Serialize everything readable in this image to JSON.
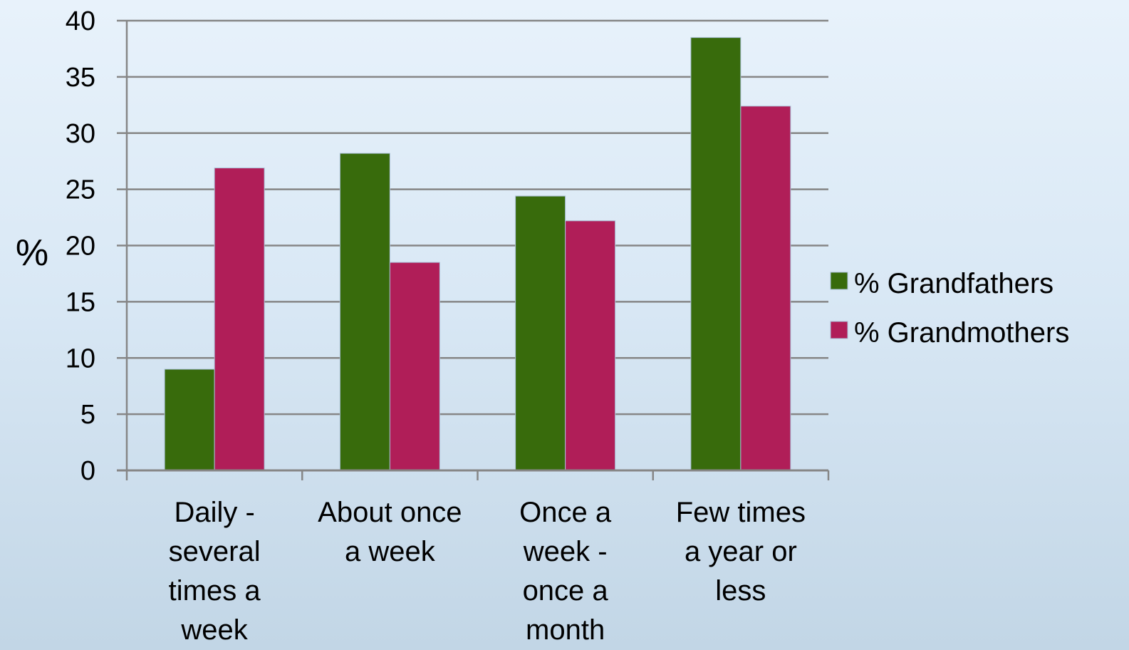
{
  "chart_data": {
    "type": "bar",
    "title": "",
    "xlabel": "",
    "ylabel": "%",
    "ylim": [
      0,
      40
    ],
    "yticks": [
      0,
      5,
      10,
      15,
      20,
      25,
      30,
      35,
      40
    ],
    "grid": true,
    "legend_position": "right",
    "categories": [
      [
        "Daily -",
        "several",
        "times a",
        "week"
      ],
      [
        "About once",
        "a week"
      ],
      [
        "Once a",
        "week -",
        "once a",
        "month"
      ],
      [
        "Few times",
        "a year or",
        "less"
      ]
    ],
    "series": [
      {
        "name": "% Grandfathers",
        "color": "#386b0c",
        "values": [
          9,
          28.2,
          24.4,
          38.5
        ]
      },
      {
        "name": "% Grandmothers",
        "color": "#b01e58",
        "values": [
          26.9,
          18.5,
          22.2,
          32.4
        ]
      }
    ]
  }
}
